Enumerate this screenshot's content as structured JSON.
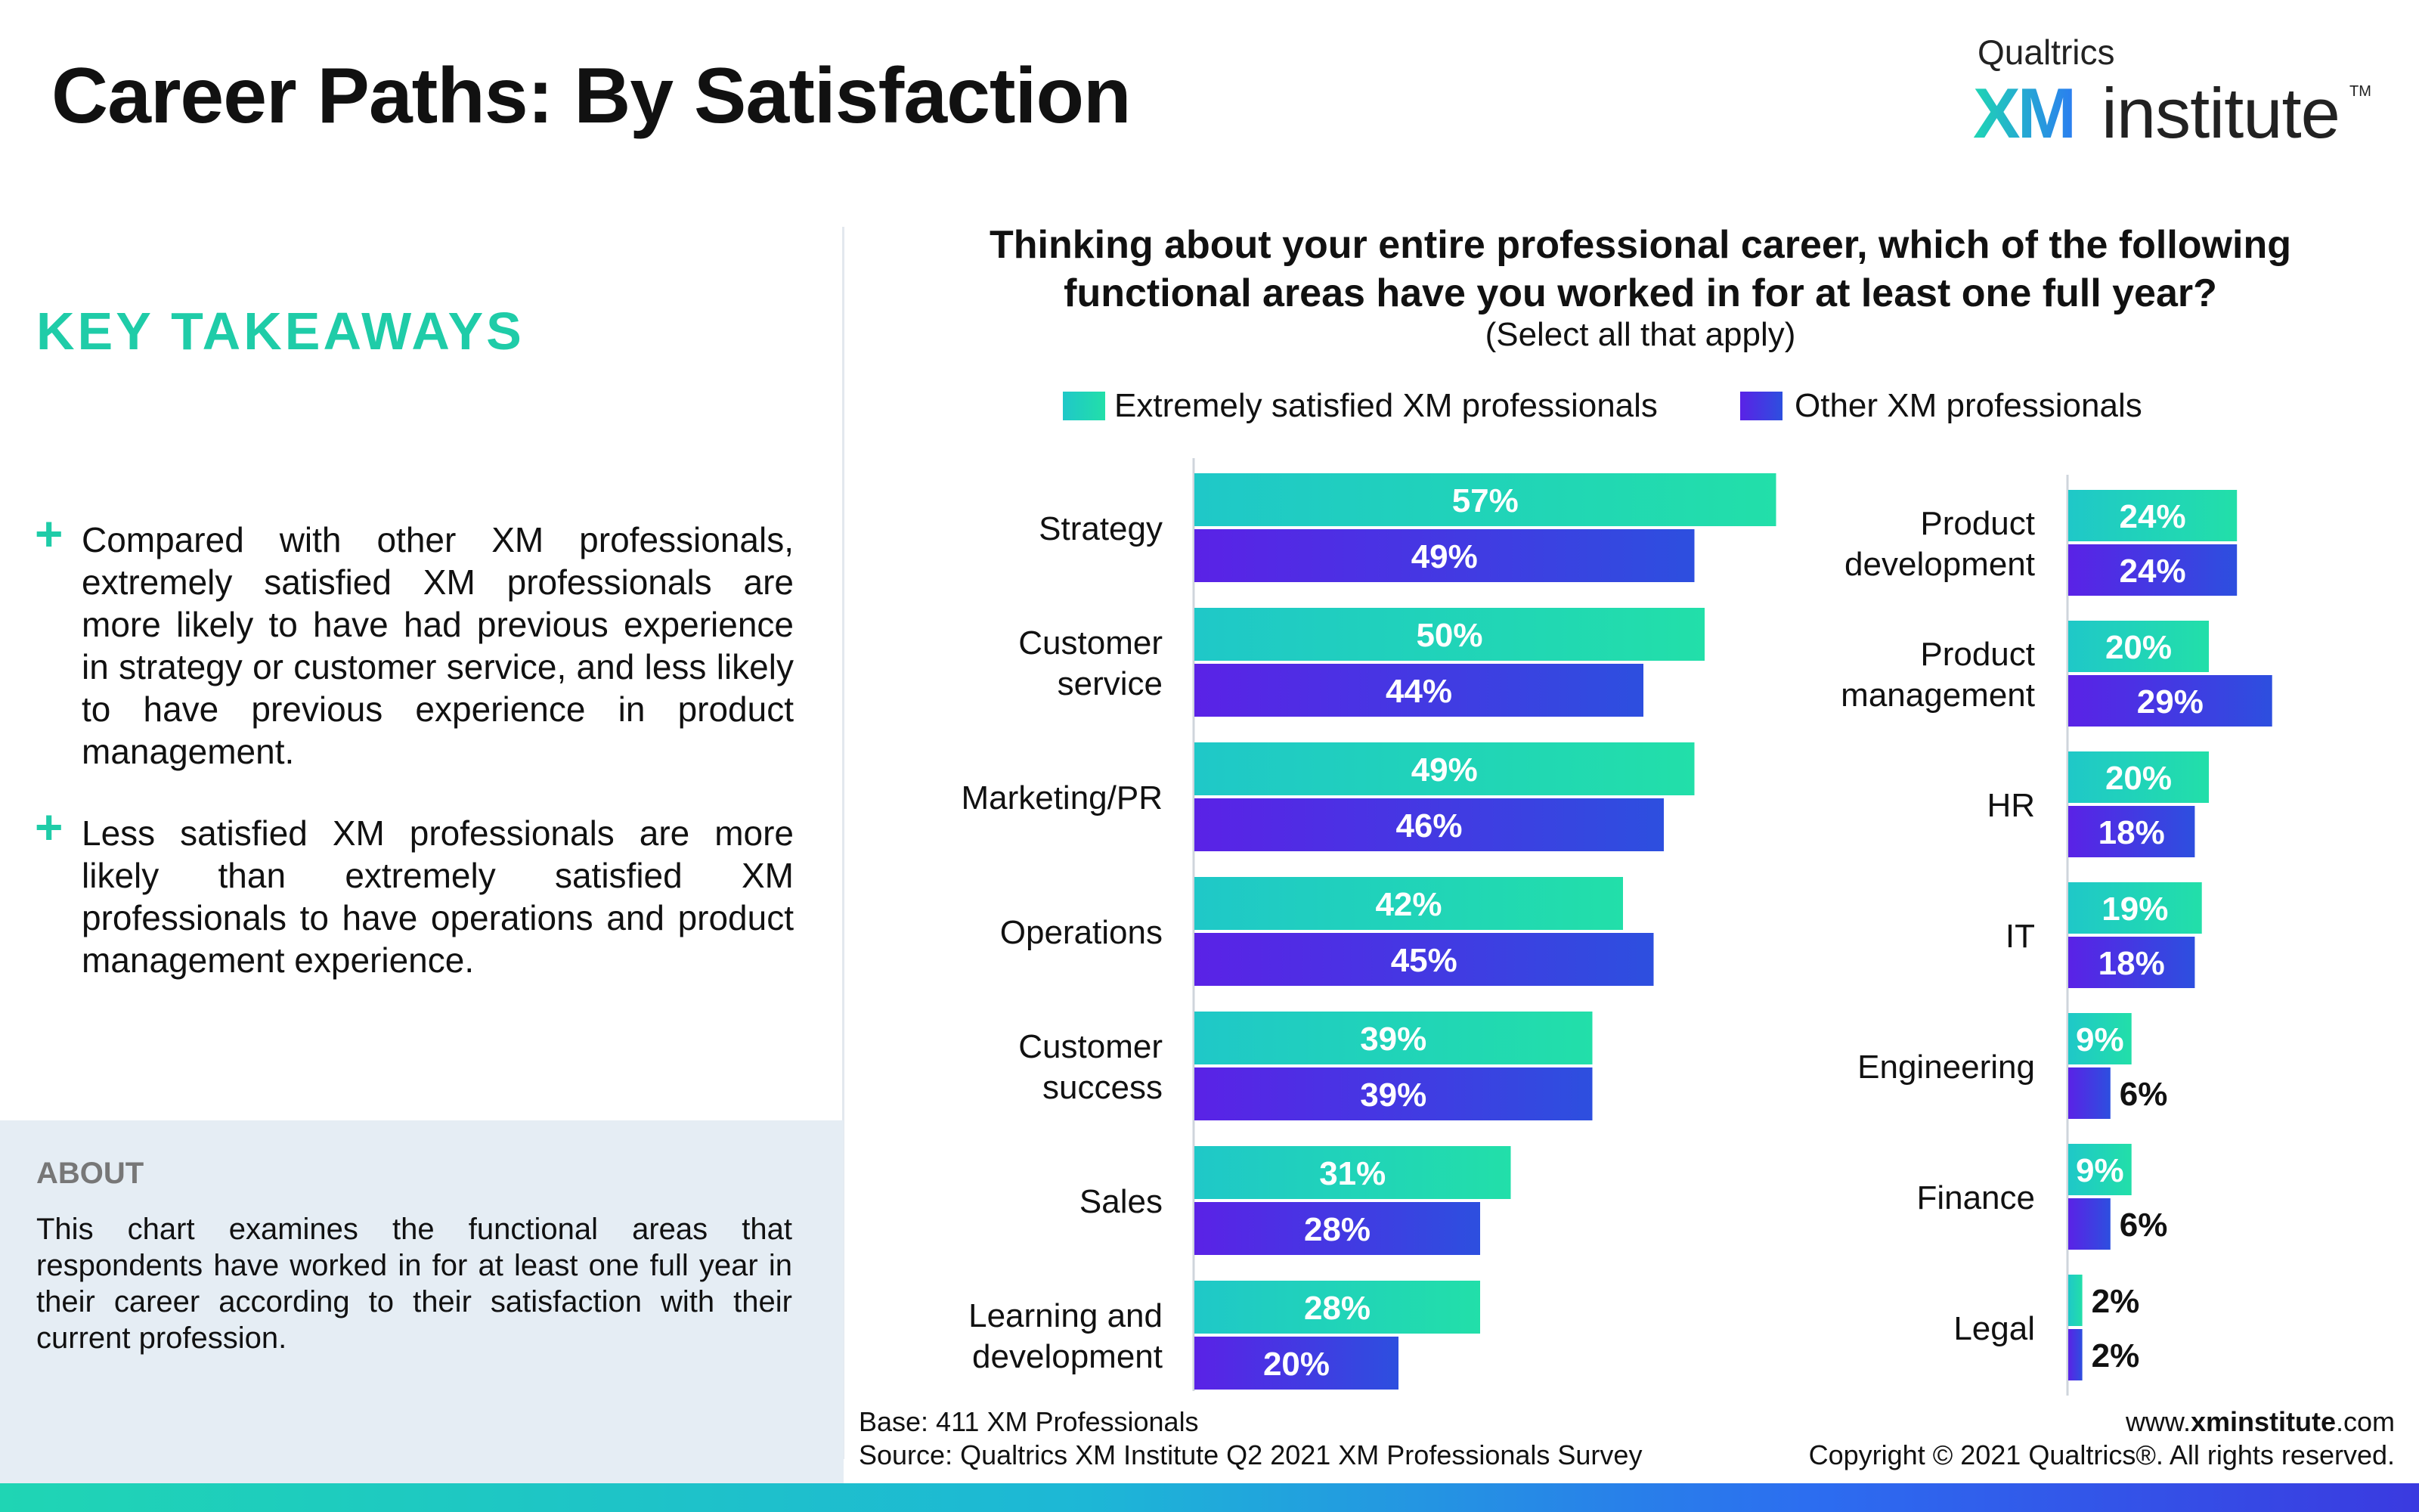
{
  "header": {
    "title": "Career Paths: By Satisfaction",
    "logo_top": "Qualtrics",
    "logo_xm": "XM",
    "logo_institute": "institute",
    "logo_tm": "TM"
  },
  "sidebar": {
    "heading": "KEY TAKEAWAYS",
    "takeaways": [
      "Compared with other XM professionals, extremely satisfied XM professionals are more likely to have had previous experience in strategy or customer service, and less likely to have previous experience in product management.",
      "Less satisfied XM professionals are more likely than extremely satisfied XM professionals to have operations and product management experience."
    ],
    "about_heading": "ABOUT",
    "about_text": "This chart examines the functional areas that respondents have worked in for at least one full year in their career according to their satisfaction with their current profession."
  },
  "question": {
    "title_line1": "Thinking about your entire professional career, which of the following",
    "title_line2": "functional areas have you worked in for at least one full year?",
    "subtitle": "(Select all that apply)"
  },
  "colors": {
    "series1_start": "#1fc8c8",
    "series1_end": "#22dfa9",
    "series2_start": "#5a22e6",
    "series2_end": "#2d4fdf",
    "accent": "#1fcca8"
  },
  "chart_data": {
    "type": "bar",
    "orientation": "horizontal",
    "series": [
      {
        "name": "Extremely satisfied XM professionals"
      },
      {
        "name": "Other XM professionals"
      }
    ],
    "left_panel": {
      "categories": [
        "Strategy",
        "Customer service",
        "Marketing/PR",
        "Operations",
        "Customer success",
        "Sales",
        "Learning and development"
      ],
      "series": [
        {
          "name": "Extremely satisfied XM professionals",
          "values": [
            57,
            50,
            49,
            42,
            39,
            31,
            28
          ]
        },
        {
          "name": "Other XM professionals",
          "values": [
            49,
            44,
            46,
            45,
            39,
            28,
            20
          ]
        }
      ]
    },
    "right_panel": {
      "categories": [
        "Product development",
        "Product management",
        "HR",
        "IT",
        "Engineering",
        "Finance",
        "Legal"
      ],
      "series": [
        {
          "name": "Extremely satisfied XM professionals",
          "values": [
            24,
            20,
            20,
            19,
            9,
            9,
            2
          ]
        },
        {
          "name": "Other XM professionals",
          "values": [
            24,
            29,
            18,
            18,
            6,
            6,
            2
          ]
        }
      ]
    },
    "value_suffix": "%",
    "grid": false,
    "legend_position": "top"
  },
  "footer": {
    "base": "Base: 411 XM Professionals",
    "source": "Source: Qualtrics XM Institute Q2 2021 XM Professionals Survey",
    "url_prefix": "www.",
    "url_bold": "xminstitute",
    "url_suffix": ".com",
    "copyright": "Copyright © 2021 Qualtrics®. All rights reserved."
  }
}
